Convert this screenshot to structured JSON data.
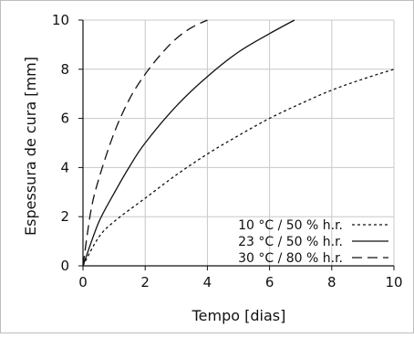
{
  "chart_data": {
    "type": "line",
    "xlabel": "Tempo [dias]",
    "ylabel": "Espessura de cura [mm]",
    "xlim": [
      0,
      10
    ],
    "ylim": [
      0,
      10
    ],
    "xticks": [
      0,
      2,
      4,
      6,
      8,
      10
    ],
    "yticks": [
      0,
      2,
      4,
      6,
      8,
      10
    ],
    "grid": true,
    "legend_position": "bottom-right",
    "series": [
      {
        "name": "10 °C / 50 %  h.r.",
        "line_style": "dotted",
        "color": "#111111",
        "x": [
          0,
          0.5,
          1,
          2,
          3,
          4,
          5,
          6,
          7,
          8,
          9,
          10
        ],
        "y": [
          0,
          1.15,
          1.8,
          2.75,
          3.7,
          4.55,
          5.3,
          6.0,
          6.6,
          7.15,
          7.6,
          8.0
        ]
      },
      {
        "name": "23 °C / 50 %  h.r.",
        "line_style": "solid",
        "color": "#111111",
        "x": [
          0,
          0.5,
          1,
          1.5,
          2,
          3,
          4,
          5,
          6,
          6.8
        ],
        "y": [
          0,
          1.75,
          2.95,
          4.05,
          5.0,
          6.5,
          7.7,
          8.7,
          9.45,
          10.0
        ]
      },
      {
        "name": "30 °C / 80 %  h.r.",
        "line_style": "dashed",
        "color": "#111111",
        "x": [
          0,
          0.25,
          0.5,
          1,
          1.5,
          2,
          2.5,
          3,
          3.5,
          4
        ],
        "y": [
          0,
          2.2,
          3.5,
          5.4,
          6.8,
          7.8,
          8.6,
          9.25,
          9.7,
          10.0
        ]
      }
    ]
  }
}
